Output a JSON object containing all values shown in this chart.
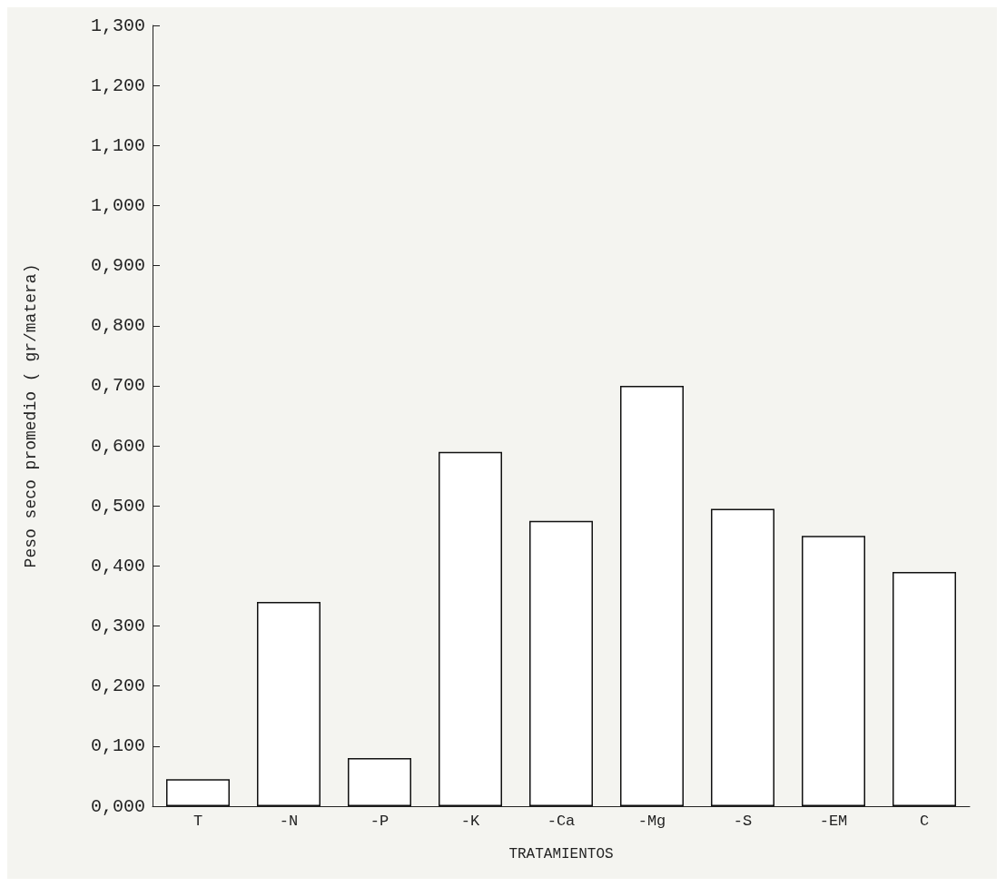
{
  "chart_data": {
    "type": "bar",
    "xlabel": "TRATAMIENTOS",
    "ylabel": "Peso seco promedio ( gr/matera)",
    "categories": [
      "T",
      "-N",
      "-P",
      "-K",
      "-Ca",
      "-Mg",
      "-S",
      "-EM",
      "C"
    ],
    "values": [
      0.045,
      0.34,
      0.08,
      0.59,
      0.475,
      0.7,
      0.495,
      0.45,
      0.39
    ],
    "color": "#ffffff",
    "ylim": [
      0,
      1.3
    ],
    "yticks": [
      {
        "value": 0,
        "label": "0,000"
      },
      {
        "value": 0.1,
        "label": "0,100"
      },
      {
        "value": 0.2,
        "label": "0,200"
      },
      {
        "value": 0.3,
        "label": "0,300"
      },
      {
        "value": 0.4,
        "label": "0,400"
      },
      {
        "value": 0.5,
        "label": "0,500"
      },
      {
        "value": 0.6,
        "label": "0,600"
      },
      {
        "value": 0.7,
        "label": "0,700"
      },
      {
        "value": 0.8,
        "label": "0,800"
      },
      {
        "value": 0.9,
        "label": "0,900"
      },
      {
        "value": 1.0,
        "label": "1,000"
      },
      {
        "value": 1.1,
        "label": "1,100"
      },
      {
        "value": 1.2,
        "label": "1,200"
      },
      {
        "value": 1.3,
        "label": "1,300"
      }
    ],
    "grid": false
  }
}
